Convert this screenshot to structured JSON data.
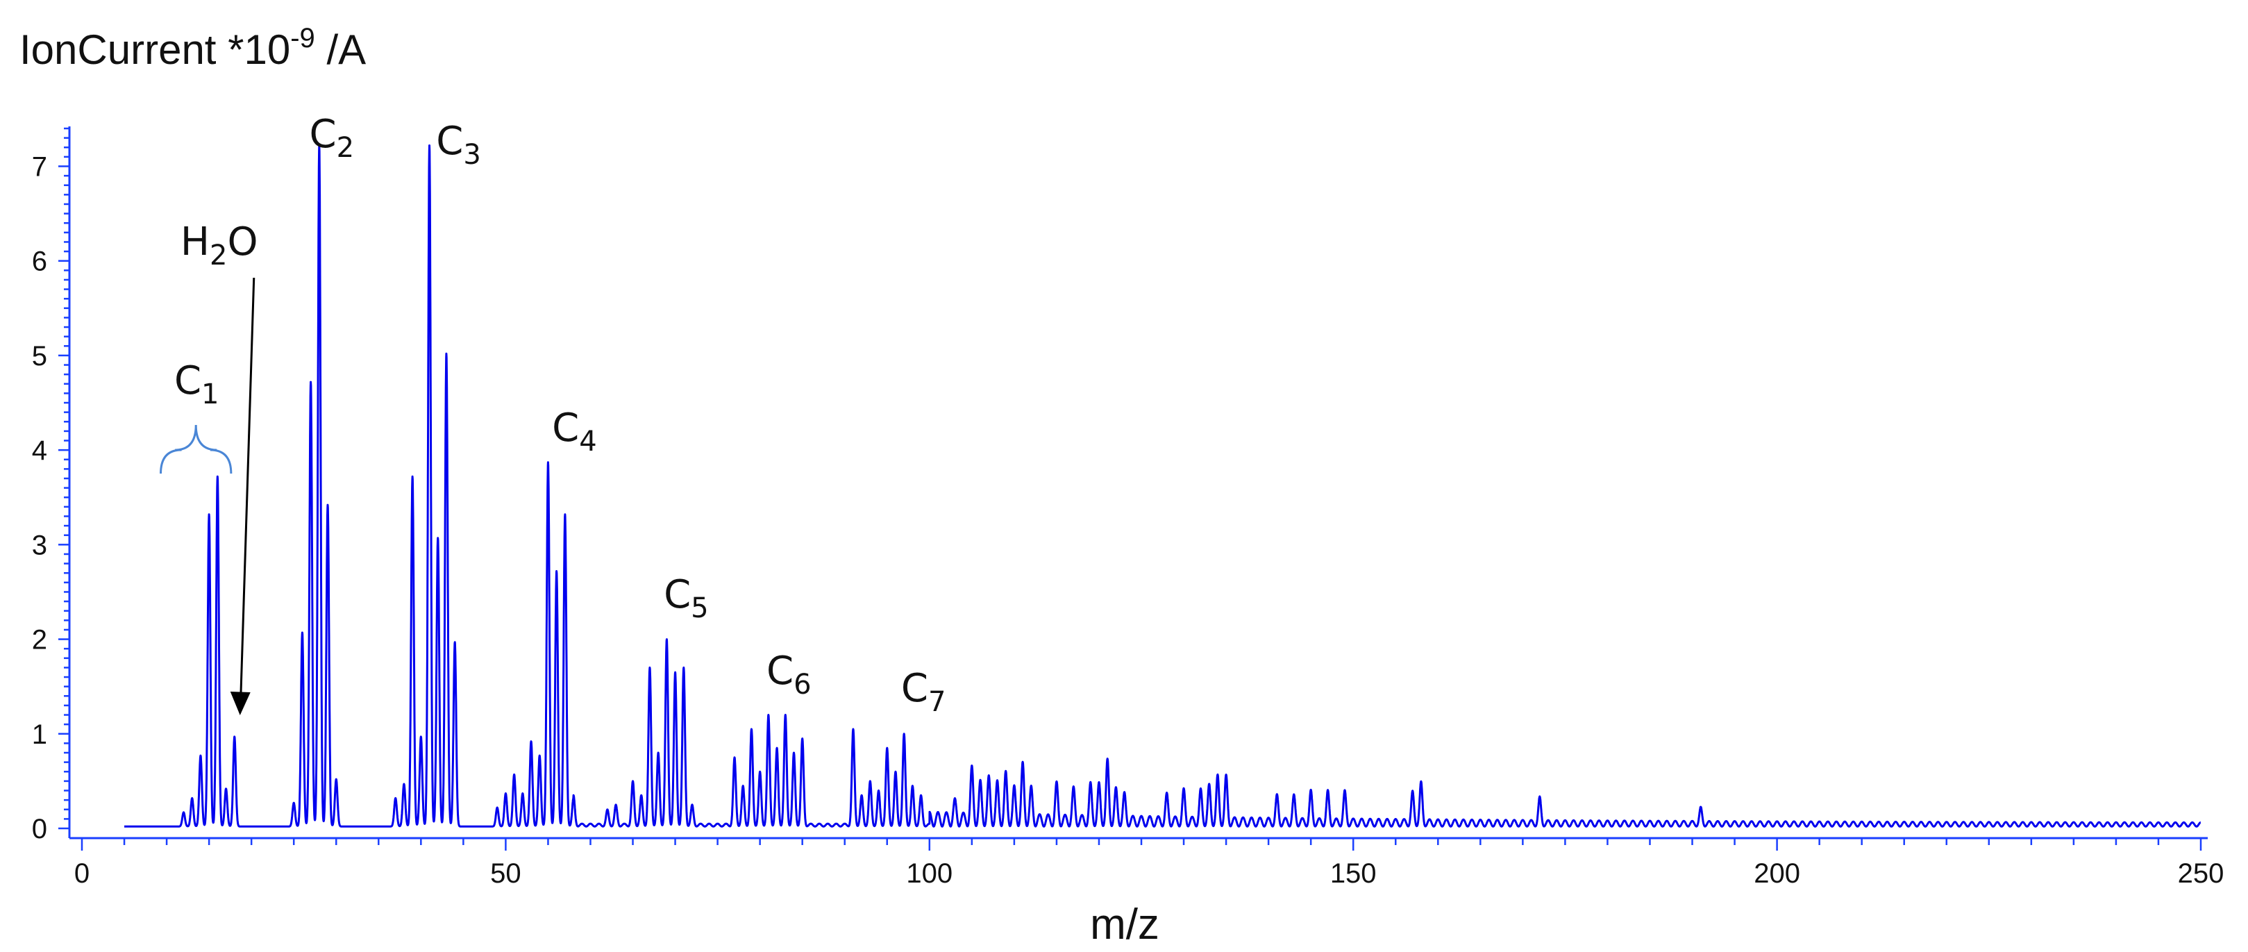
{
  "chart_data": {
    "type": "line",
    "title": "",
    "ylabel": "IonCurrent *10",
    "ylabel_exponent": "-9",
    "ylabel_unit": " /A",
    "xlabel": "m/z",
    "xlim": [
      0,
      250
    ],
    "ylim": [
      0,
      7.4
    ],
    "x_ticks": [
      0,
      50,
      100,
      150,
      200,
      250
    ],
    "y_ticks": [
      0,
      1,
      2,
      3,
      4,
      5,
      6,
      7
    ],
    "grid": false,
    "legend": "none",
    "series": [
      {
        "color": "#0000ee",
        "peaks": [
          [
            12,
            0.15
          ],
          [
            13,
            0.3
          ],
          [
            14,
            0.75
          ],
          [
            15,
            3.3
          ],
          [
            16,
            3.7
          ],
          [
            17,
            0.4
          ],
          [
            18,
            0.95
          ],
          [
            25,
            0.25
          ],
          [
            26,
            2.05
          ],
          [
            27,
            4.7
          ],
          [
            28,
            7.2
          ],
          [
            29,
            3.4
          ],
          [
            30,
            0.5
          ],
          [
            37,
            0.3
          ],
          [
            38,
            0.45
          ],
          [
            39,
            3.7
          ],
          [
            40,
            0.95
          ],
          [
            41,
            7.2
          ],
          [
            42,
            3.05
          ],
          [
            43,
            5.0
          ],
          [
            44,
            1.95
          ],
          [
            49,
            0.2
          ],
          [
            50,
            0.35
          ],
          [
            51,
            0.55
          ],
          [
            52,
            0.35
          ],
          [
            53,
            0.9
          ],
          [
            54,
            0.75
          ],
          [
            55,
            3.85
          ],
          [
            56,
            2.7
          ],
          [
            57,
            3.3
          ],
          [
            58,
            0.3
          ],
          [
            62,
            0.15
          ],
          [
            63,
            0.2
          ],
          [
            65,
            0.45
          ],
          [
            66,
            0.3
          ],
          [
            67,
            1.65
          ],
          [
            68,
            0.75
          ],
          [
            69,
            1.95
          ],
          [
            70,
            1.6
          ],
          [
            71,
            1.65
          ],
          [
            72,
            0.2
          ],
          [
            77,
            0.7
          ],
          [
            78,
            0.4
          ],
          [
            79,
            1.0
          ],
          [
            80,
            0.55
          ],
          [
            81,
            1.15
          ],
          [
            82,
            0.8
          ],
          [
            83,
            1.15
          ],
          [
            84,
            0.75
          ],
          [
            85,
            0.9
          ],
          [
            91,
            1.0
          ],
          [
            92,
            0.3
          ],
          [
            93,
            0.45
          ],
          [
            94,
            0.35
          ],
          [
            95,
            0.8
          ],
          [
            96,
            0.55
          ],
          [
            97,
            0.95
          ],
          [
            98,
            0.4
          ],
          [
            99,
            0.3
          ],
          [
            103,
            0.15
          ],
          [
            105,
            0.5
          ],
          [
            106,
            0.35
          ],
          [
            107,
            0.4
          ],
          [
            108,
            0.35
          ],
          [
            109,
            0.45
          ],
          [
            110,
            0.3
          ],
          [
            111,
            0.55
          ],
          [
            112,
            0.3
          ],
          [
            115,
            0.35
          ],
          [
            117,
            0.3
          ],
          [
            119,
            0.35
          ],
          [
            120,
            0.35
          ],
          [
            121,
            0.6
          ],
          [
            122,
            0.3
          ],
          [
            123,
            0.25
          ],
          [
            128,
            0.25
          ],
          [
            130,
            0.3
          ],
          [
            132,
            0.3
          ],
          [
            133,
            0.35
          ],
          [
            134,
            0.45
          ],
          [
            135,
            0.45
          ],
          [
            141,
            0.25
          ],
          [
            143,
            0.25
          ],
          [
            145,
            0.3
          ],
          [
            147,
            0.3
          ],
          [
            149,
            0.3
          ],
          [
            157,
            0.3
          ],
          [
            158,
            0.4
          ],
          [
            172,
            0.25
          ],
          [
            191,
            0.15
          ]
        ]
      }
    ],
    "annotations": [
      {
        "base": "C",
        "sub": "1",
        "x": 15.5
      },
      {
        "base": "C",
        "sub": "2",
        "x": 28
      },
      {
        "base": "C",
        "sub": "3",
        "x": 41
      },
      {
        "base": "C",
        "sub": "4",
        "x": 55
      },
      {
        "base": "C",
        "sub": "5",
        "x": 69
      },
      {
        "base": "C",
        "sub": "6",
        "x": 83
      },
      {
        "base": "C",
        "sub": "7",
        "x": 97
      },
      {
        "base": "H",
        "sub": "2",
        "tail": "O",
        "x": 18
      }
    ]
  }
}
